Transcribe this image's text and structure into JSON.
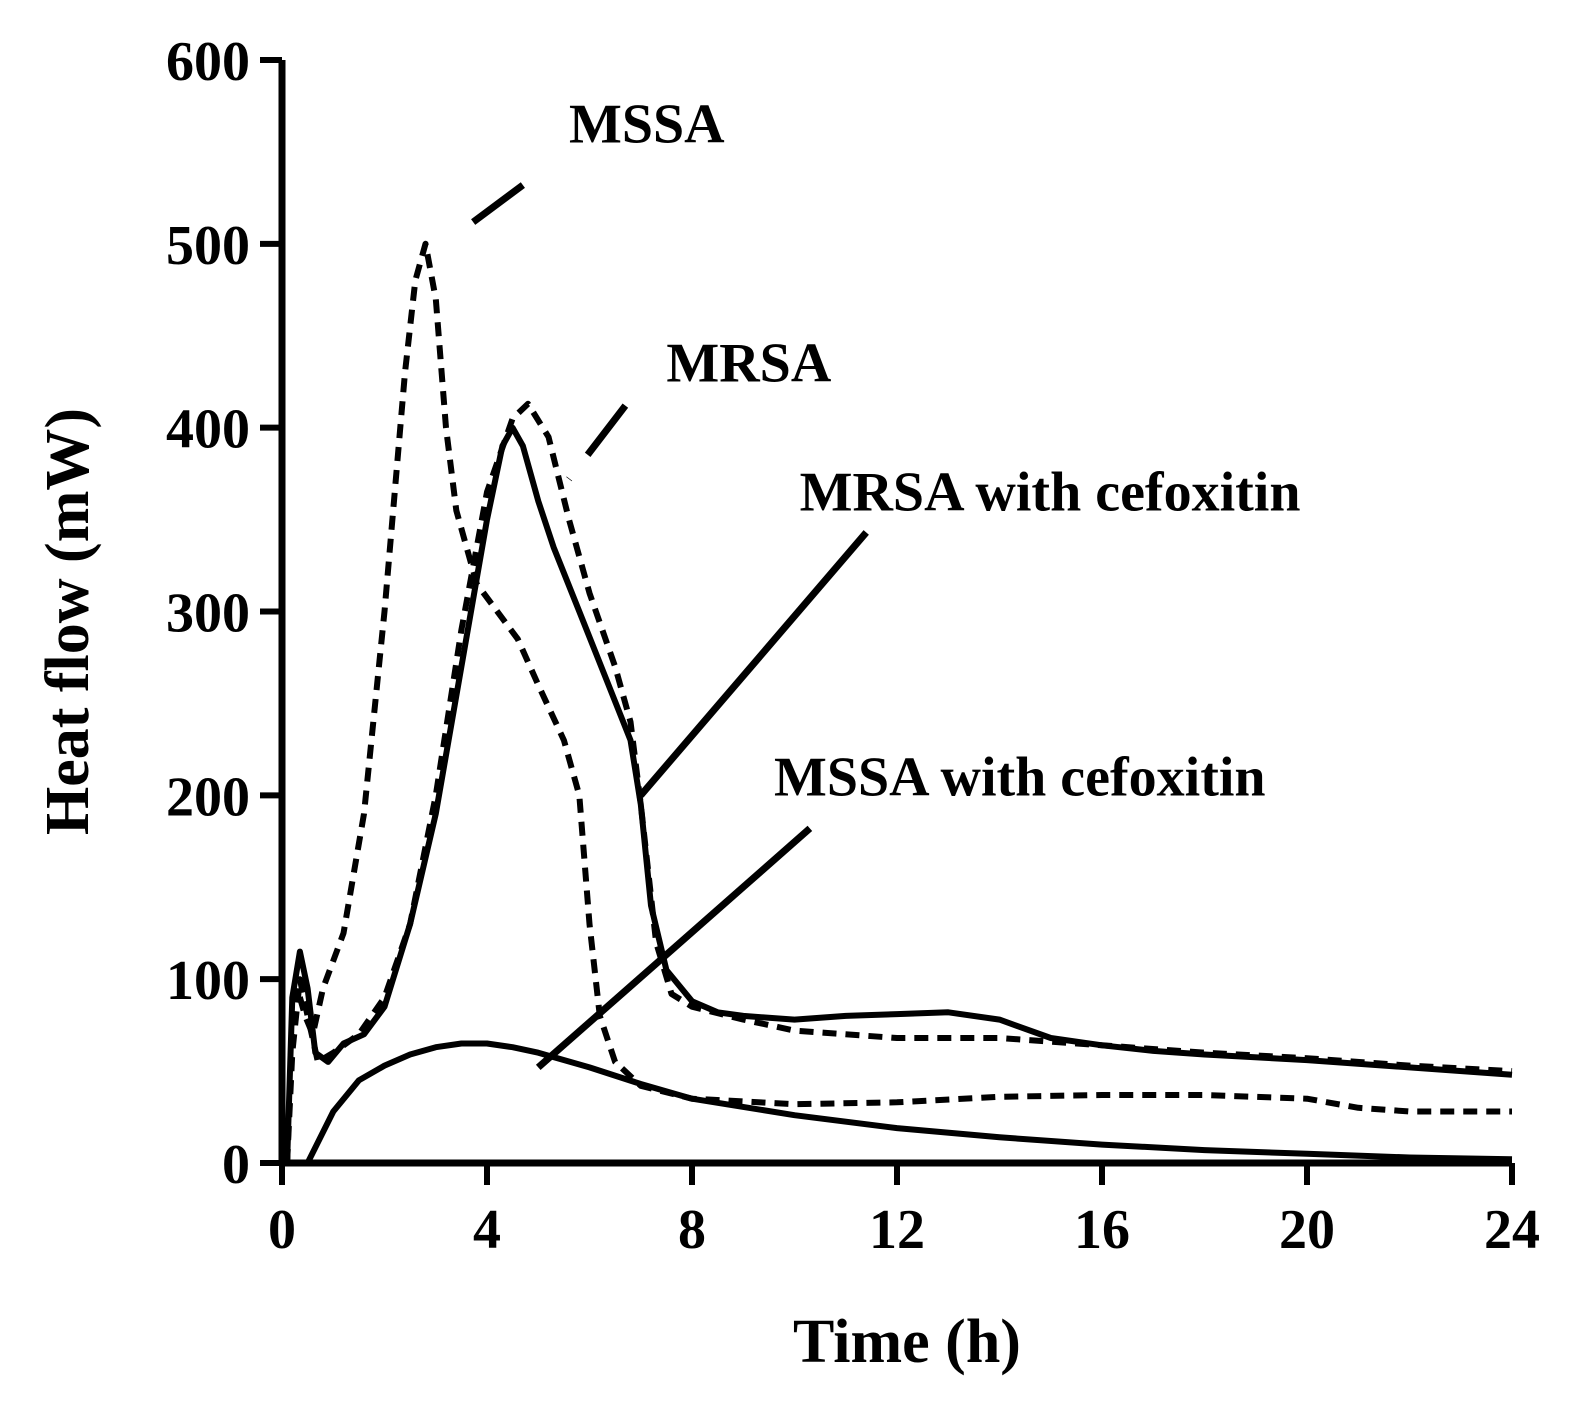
{
  "chart_data": {
    "type": "line",
    "xlabel": "Time (h)",
    "ylabel": "Heat flow (mW)",
    "xlim": [
      0,
      24
    ],
    "ylim": [
      0,
      600
    ],
    "xticks": [
      0,
      4,
      8,
      12,
      16,
      20,
      24
    ],
    "yticks": [
      0,
      100,
      200,
      300,
      400,
      500,
      600
    ],
    "grid": false,
    "series": [
      {
        "name": "MSSA",
        "style": "dashed",
        "points": [
          [
            0.1,
            0
          ],
          [
            0.2,
            75
          ],
          [
            0.3,
            95
          ],
          [
            0.45,
            80
          ],
          [
            0.6,
            70
          ],
          [
            0.8,
            95
          ],
          [
            1.2,
            125
          ],
          [
            1.6,
            190
          ],
          [
            2.0,
            300
          ],
          [
            2.4,
            430
          ],
          [
            2.6,
            480
          ],
          [
            2.8,
            500
          ],
          [
            3.0,
            470
          ],
          [
            3.2,
            400
          ],
          [
            3.4,
            355
          ],
          [
            3.8,
            315
          ],
          [
            4.2,
            300
          ],
          [
            4.6,
            285
          ],
          [
            5.0,
            260
          ],
          [
            5.5,
            230
          ],
          [
            5.8,
            200
          ],
          [
            6.0,
            130
          ],
          [
            6.2,
            80
          ],
          [
            6.5,
            55
          ],
          [
            7.0,
            42
          ],
          [
            8.0,
            35
          ],
          [
            10,
            32
          ],
          [
            12,
            33
          ],
          [
            14,
            36
          ],
          [
            16,
            37
          ],
          [
            18,
            37
          ],
          [
            20,
            35
          ],
          [
            21,
            30
          ],
          [
            22,
            28
          ],
          [
            24,
            28
          ]
        ]
      },
      {
        "name": "MRSA",
        "style": "dashed",
        "points": [
          [
            0.1,
            0
          ],
          [
            0.2,
            60
          ],
          [
            0.35,
            100
          ],
          [
            0.5,
            80
          ],
          [
            0.7,
            55
          ],
          [
            1.0,
            60
          ],
          [
            1.5,
            70
          ],
          [
            2.0,
            90
          ],
          [
            2.5,
            130
          ],
          [
            3.0,
            200
          ],
          [
            3.5,
            290
          ],
          [
            4.0,
            365
          ],
          [
            4.5,
            405
          ],
          [
            4.8,
            413
          ],
          [
            5.2,
            395
          ],
          [
            5.6,
            350
          ],
          [
            6.0,
            310
          ],
          [
            6.5,
            270
          ],
          [
            6.8,
            240
          ],
          [
            7.0,
            195
          ],
          [
            7.3,
            120
          ],
          [
            7.6,
            92
          ],
          [
            8.0,
            85
          ],
          [
            9.0,
            78
          ],
          [
            10,
            72
          ],
          [
            12,
            68
          ],
          [
            14,
            68
          ],
          [
            16,
            64
          ],
          [
            18,
            60
          ],
          [
            20,
            57
          ],
          [
            22,
            53
          ],
          [
            24,
            50
          ]
        ]
      },
      {
        "name": "MRSA with cefoxitin",
        "style": "solid",
        "points": [
          [
            0.1,
            0
          ],
          [
            0.2,
            90
          ],
          [
            0.35,
            115
          ],
          [
            0.5,
            95
          ],
          [
            0.65,
            60
          ],
          [
            0.9,
            55
          ],
          [
            1.2,
            65
          ],
          [
            1.6,
            70
          ],
          [
            2.0,
            85
          ],
          [
            2.5,
            130
          ],
          [
            3.0,
            190
          ],
          [
            3.5,
            270
          ],
          [
            4.0,
            350
          ],
          [
            4.3,
            390
          ],
          [
            4.5,
            400
          ],
          [
            4.7,
            390
          ],
          [
            5.0,
            360
          ],
          [
            5.3,
            335
          ],
          [
            5.8,
            300
          ],
          [
            6.3,
            265
          ],
          [
            6.8,
            230
          ],
          [
            7.0,
            195
          ],
          [
            7.2,
            140
          ],
          [
            7.5,
            105
          ],
          [
            8.0,
            88
          ],
          [
            8.5,
            82
          ],
          [
            9.0,
            80
          ],
          [
            10,
            78
          ],
          [
            11,
            80
          ],
          [
            12,
            81
          ],
          [
            13,
            82
          ],
          [
            14,
            78
          ],
          [
            15,
            68
          ],
          [
            16,
            64
          ],
          [
            17,
            61
          ],
          [
            18,
            59
          ],
          [
            20,
            56
          ],
          [
            22,
            52
          ],
          [
            24,
            48
          ]
        ]
      },
      {
        "name": "MSSA with cefoxitin",
        "style": "solid",
        "points": [
          [
            0.5,
            0
          ],
          [
            1.0,
            28
          ],
          [
            1.5,
            45
          ],
          [
            2.0,
            53
          ],
          [
            2.5,
            59
          ],
          [
            3.0,
            63
          ],
          [
            3.5,
            65
          ],
          [
            4.0,
            65
          ],
          [
            4.5,
            63
          ],
          [
            5.0,
            60
          ],
          [
            6.0,
            52
          ],
          [
            7.0,
            43
          ],
          [
            8.0,
            35
          ],
          [
            10,
            26
          ],
          [
            12,
            19
          ],
          [
            14,
            14
          ],
          [
            16,
            10
          ],
          [
            18,
            7
          ],
          [
            20,
            5
          ],
          [
            22,
            3
          ],
          [
            24,
            2
          ]
        ]
      }
    ],
    "annotations": [
      {
        "text": "MSSA",
        "series": "MSSA",
        "label_at": [
          5.6,
          555
        ],
        "pointer_from": [
          4.7,
          532
        ],
        "pointer_to": [
          3.4,
          505
        ]
      },
      {
        "text": "MRSA",
        "series": "MRSA",
        "label_at": [
          7.5,
          425
        ],
        "pointer_from": [
          6.7,
          412
        ],
        "pointer_to": [
          5.6,
          372
        ]
      },
      {
        "text": "MRSA with cefoxitin",
        "series": "MRSA with cefoxitin",
        "label_at": [
          10.1,
          355
        ],
        "pointer_from": [
          11.4,
          343
        ],
        "pointer_to": [
          7.0,
          200
        ]
      },
      {
        "text": "MSSA with cefoxitin",
        "series": "MSSA with cefoxitin",
        "label_at": [
          9.6,
          200
        ],
        "pointer_from": [
          10.3,
          182
        ],
        "pointer_to": [
          5.0,
          52
        ]
      }
    ]
  }
}
